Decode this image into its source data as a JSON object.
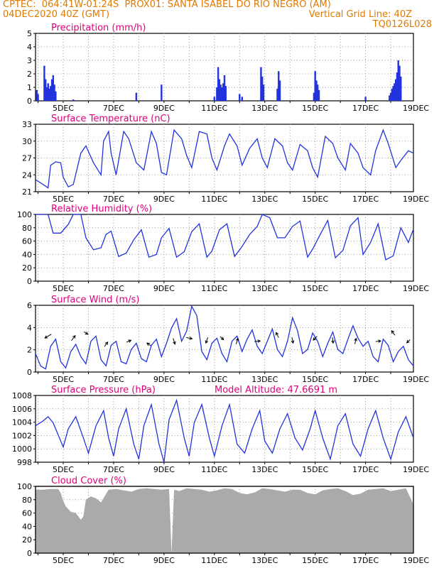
{
  "header": {
    "line1_left": "CPTEC:  064:41W-01:24S  PROX01: SANTA ISABEL DO RIO NEGRO (AM)",
    "line2_left": "04DEC2020 40Z (GMT)",
    "line2_right": "Vertical Grid Line: 40Z",
    "line3_right": "TQ0126L028"
  },
  "colors": {
    "title": "#e0007a",
    "header": "#e07a00",
    "line": "#2233dd",
    "cloud": "#aaaaaa",
    "grid": "#9a9a9a"
  },
  "x_ticks": [
    "5DEC",
    "7DEC",
    "9DEC",
    "11DEC",
    "13DEC",
    "15DEC",
    "17DEC",
    "19DEC"
  ],
  "chart_data": [
    {
      "type": "bar",
      "title": "Precipitation (mm/h)",
      "xlim": [
        0,
        15
      ],
      "ylim": [
        0,
        5
      ],
      "yticks": [
        "0",
        "1",
        "2",
        "3",
        "4",
        "5"
      ],
      "x_unit": "days since 04DEC",
      "bars": [
        [
          0.05,
          0.8
        ],
        [
          0.1,
          0.5
        ],
        [
          0.35,
          2.6
        ],
        [
          0.4,
          1.6
        ],
        [
          0.45,
          1.0
        ],
        [
          0.5,
          1.3
        ],
        [
          0.55,
          0.9
        ],
        [
          0.6,
          1.1
        ],
        [
          0.65,
          1.6
        ],
        [
          0.7,
          1.9
        ],
        [
          0.75,
          1.2
        ],
        [
          0.8,
          0.7
        ],
        [
          1.5,
          0.1
        ],
        [
          4.0,
          0.6
        ],
        [
          5.0,
          1.2
        ],
        [
          7.1,
          0.3
        ],
        [
          7.2,
          1.0
        ],
        [
          7.25,
          2.5
        ],
        [
          7.3,
          1.6
        ],
        [
          7.35,
          1.2
        ],
        [
          7.4,
          1.0
        ],
        [
          7.45,
          1.3
        ],
        [
          7.5,
          1.9
        ],
        [
          7.55,
          1.1
        ],
        [
          8.1,
          0.5
        ],
        [
          8.2,
          0.3
        ],
        [
          8.95,
          2.5
        ],
        [
          9.0,
          1.8
        ],
        [
          9.05,
          1.2
        ],
        [
          9.6,
          0.9
        ],
        [
          9.65,
          2.2
        ],
        [
          9.7,
          1.5
        ],
        [
          11.05,
          0.6
        ],
        [
          11.1,
          2.2
        ],
        [
          11.15,
          1.5
        ],
        [
          11.2,
          1.2
        ],
        [
          11.25,
          0.8
        ],
        [
          13.1,
          0.3
        ],
        [
          14.05,
          0.4
        ],
        [
          14.1,
          0.6
        ],
        [
          14.15,
          0.9
        ],
        [
          14.2,
          1.1
        ],
        [
          14.25,
          1.3
        ],
        [
          14.3,
          1.6
        ],
        [
          14.35,
          2.1
        ],
        [
          14.4,
          3.0
        ],
        [
          14.45,
          2.6
        ],
        [
          14.5,
          1.8
        ]
      ]
    },
    {
      "type": "line",
      "title": "Surface Temperature (nC)",
      "xlim": [
        0,
        15
      ],
      "ylim": [
        21,
        35
      ],
      "yticks": [
        "21",
        "24",
        "27",
        "30",
        "33"
      ],
      "series": [
        {
          "x": [
            0,
            0.3,
            0.5,
            0.6,
            0.8,
            1.0,
            1.1,
            1.3,
            1.5,
            1.8,
            2.0,
            2.3,
            2.6,
            2.7,
            2.9,
            3.0,
            3.2,
            3.5,
            3.7,
            4.0,
            4.3,
            4.6,
            4.8,
            5.0,
            5.2,
            5.5,
            5.8,
            6.0,
            6.2,
            6.5,
            6.8,
            7.0,
            7.2,
            7.5,
            7.7,
            8.0,
            8.2,
            8.5,
            8.8,
            9.0,
            9.2,
            9.5,
            9.8,
            10.0,
            10.2,
            10.5,
            10.8,
            11.0,
            11.2,
            11.5,
            11.8,
            12.0,
            12.3,
            12.5,
            12.8,
            13.0,
            13.3,
            13.5,
            13.8,
            14.0,
            14.3,
            14.5,
            14.8,
            15.0
          ],
          "y": [
            23.5,
            22.5,
            21.8,
            26.5,
            27.2,
            27.0,
            24.0,
            22.0,
            22.5,
            29.0,
            30.5,
            27.0,
            24.5,
            31.5,
            33.5,
            29.0,
            24.5,
            33.5,
            32.0,
            27.0,
            25.5,
            33.5,
            31.0,
            25.0,
            24.5,
            33.8,
            32.0,
            28.5,
            26.0,
            33.5,
            33.0,
            28.0,
            25.5,
            30.5,
            33.0,
            30.5,
            26.5,
            30.0,
            32.0,
            28.0,
            26.0,
            32.0,
            30.5,
            27.0,
            25.5,
            30.8,
            29.5,
            26.0,
            24.0,
            32.5,
            31.0,
            28.0,
            25.5,
            31.0,
            29.0,
            26.0,
            24.5,
            29.5,
            33.8,
            31.0,
            26.0,
            27.5,
            29.5,
            29.0
          ]
        }
      ]
    },
    {
      "type": "line",
      "title": "Relative Humidity (%)",
      "xlim": [
        0,
        15
      ],
      "ylim": [
        0,
        100
      ],
      "yticks": [
        "0",
        "20",
        "40",
        "60",
        "80",
        "100"
      ],
      "series": [
        {
          "x": [
            0,
            0.3,
            0.5,
            0.7,
            1.0,
            1.3,
            1.5,
            1.8,
            2.0,
            2.3,
            2.6,
            2.8,
            3.0,
            3.3,
            3.6,
            3.9,
            4.2,
            4.5,
            4.8,
            5.0,
            5.3,
            5.6,
            5.9,
            6.2,
            6.5,
            6.8,
            7.0,
            7.3,
            7.6,
            7.9,
            8.2,
            8.5,
            8.8,
            9.0,
            9.3,
            9.6,
            9.9,
            10.2,
            10.5,
            10.8,
            11.0,
            11.3,
            11.6,
            11.9,
            12.2,
            12.5,
            12.8,
            13.0,
            13.3,
            13.6,
            13.9,
            14.2,
            14.5,
            14.8,
            15.0
          ],
          "y": [
            100,
            100,
            100,
            72,
            72,
            85,
            100,
            100,
            65,
            47,
            50,
            70,
            75,
            37,
            42,
            62,
            77,
            36,
            40,
            65,
            79,
            36,
            44,
            74,
            86,
            36,
            45,
            77,
            86,
            37,
            52,
            70,
            82,
            100,
            95,
            65,
            65,
            82,
            90,
            36,
            48,
            70,
            91,
            35,
            46,
            83,
            95,
            40,
            58,
            86,
            32,
            38,
            80,
            58,
            78
          ]
        }
      ]
    },
    {
      "type": "line",
      "title": "Surface Wind (m/s)",
      "xlim": [
        0,
        15
      ],
      "ylim": [
        0,
        6.5
      ],
      "yticks": [
        "0",
        "2",
        "4",
        "6"
      ],
      "series": [
        {
          "x": [
            0,
            0.2,
            0.4,
            0.6,
            0.8,
            1.0,
            1.2,
            1.4,
            1.6,
            1.8,
            2.0,
            2.2,
            2.4,
            2.6,
            2.8,
            3.0,
            3.2,
            3.4,
            3.6,
            3.8,
            4.0,
            4.2,
            4.4,
            4.6,
            4.8,
            5.0,
            5.2,
            5.4,
            5.6,
            5.8,
            6.0,
            6.2,
            6.4,
            6.6,
            6.8,
            7.0,
            7.2,
            7.4,
            7.6,
            7.8,
            8.0,
            8.2,
            8.4,
            8.6,
            8.8,
            9.0,
            9.2,
            9.4,
            9.6,
            9.8,
            10.0,
            10.2,
            10.4,
            10.6,
            10.8,
            11.0,
            11.2,
            11.4,
            11.6,
            11.8,
            12.0,
            12.2,
            12.4,
            12.6,
            12.8,
            13.0,
            13.2,
            13.4,
            13.6,
            13.8,
            14.0,
            14.2,
            14.4,
            14.6,
            14.8,
            15.0
          ],
          "y": [
            1.8,
            0.6,
            0.3,
            2.5,
            3.2,
            1.0,
            0.4,
            2.0,
            2.7,
            1.5,
            0.8,
            3.0,
            3.5,
            1.2,
            0.6,
            2.6,
            3.0,
            1.0,
            0.8,
            2.2,
            2.8,
            1.3,
            1.0,
            2.6,
            3.2,
            1.5,
            2.8,
            4.3,
            5.2,
            3.0,
            4.0,
            6.4,
            5.5,
            2.0,
            1.2,
            2.8,
            3.3,
            1.8,
            1.0,
            3.0,
            3.5,
            2.0,
            3.2,
            4.1,
            2.5,
            1.8,
            3.0,
            4.2,
            2.2,
            1.5,
            3.0,
            5.3,
            4.0,
            1.8,
            2.2,
            3.8,
            3.0,
            1.5,
            2.8,
            3.9,
            2.2,
            1.8,
            3.2,
            4.5,
            3.3,
            2.5,
            3.0,
            1.5,
            1.0,
            3.2,
            2.6,
            1.0,
            2.0,
            2.5,
            1.2,
            0.6
          ]
        }
      ],
      "arrows": [
        [
          0.5,
          3.5,
          -1,
          -0.6
        ],
        [
          1.5,
          3.3,
          0.6,
          0.8
        ],
        [
          2.0,
          3.8,
          0.6,
          -0.4
        ],
        [
          2.8,
          2.7,
          0.5,
          0.7
        ],
        [
          3.7,
          3.0,
          0.7,
          0.3
        ],
        [
          4.5,
          2.7,
          -0.6,
          0.4
        ],
        [
          5.5,
          3.0,
          0.3,
          -0.9
        ],
        [
          6.1,
          3.3,
          0.9,
          -0.2
        ],
        [
          6.8,
          3.1,
          -0.3,
          -0.9
        ],
        [
          7.4,
          3.3,
          0.5,
          -0.5
        ],
        [
          8.0,
          3.0,
          0.3,
          0.9
        ],
        [
          8.8,
          3.0,
          0.9,
          0.1
        ],
        [
          9.6,
          3.6,
          -0.4,
          0.8
        ],
        [
          10.2,
          3.1,
          0.2,
          -0.9
        ],
        [
          11.1,
          3.3,
          -0.6,
          -0.6
        ],
        [
          11.8,
          3.1,
          0.1,
          -0.9
        ],
        [
          12.7,
          3.0,
          0.2,
          0.9
        ],
        [
          13.6,
          3.0,
          0.8,
          0.1
        ],
        [
          14.2,
          3.8,
          -0.5,
          0.7
        ],
        [
          14.8,
          3.0,
          -0.5,
          -0.5
        ]
      ]
    },
    {
      "type": "line",
      "title": "Surface Pressure (hPa)",
      "annotation": "Model Altitude: 47.6691 m",
      "xlim": [
        0,
        15
      ],
      "ylim": [
        998,
        1009
      ],
      "yticks": [
        "998",
        "1000",
        "1002",
        "1004",
        "1006",
        "1008"
      ],
      "series": [
        {
          "x": [
            0,
            0.3,
            0.5,
            0.7,
            0.9,
            1.1,
            1.3,
            1.6,
            1.9,
            2.1,
            2.4,
            2.7,
            2.9,
            3.1,
            3.3,
            3.6,
            3.9,
            4.1,
            4.3,
            4.6,
            4.9,
            5.1,
            5.3,
            5.6,
            5.9,
            6.1,
            6.3,
            6.6,
            6.9,
            7.1,
            7.4,
            7.7,
            8.0,
            8.3,
            8.6,
            8.9,
            9.1,
            9.4,
            9.7,
            10.0,
            10.3,
            10.6,
            10.9,
            11.1,
            11.4,
            11.7,
            12.0,
            12.3,
            12.6,
            12.9,
            13.2,
            13.5,
            13.8,
            14.1,
            14.4,
            14.7,
            15.0
          ],
          "y": [
            1004,
            1004.8,
            1005.5,
            1004.5,
            1002.5,
            1000.5,
            1003.5,
            1005.5,
            1002,
            999.5,
            1004,
            1006.5,
            1002,
            999,
            1003.5,
            1006.8,
            1001,
            998.5,
            1004,
            1007.5,
            1001,
            998,
            1005,
            1008.2,
            1002,
            999,
            1004.5,
            1007.5,
            1002,
            999,
            1004,
            1007.5,
            1001,
            999.5,
            1003.5,
            1006.5,
            1001.5,
            999.5,
            1003.5,
            1006,
            1002,
            1000,
            1003.5,
            1006.5,
            1002,
            998.5,
            1004,
            1006,
            1001,
            999,
            1003.5,
            1006.5,
            1002,
            998.5,
            1003,
            1005.5,
            1002
          ]
        }
      ]
    },
    {
      "type": "area",
      "title": "Cloud Cover (%)",
      "xlim": [
        0,
        15
      ],
      "ylim": [
        0,
        100
      ],
      "yticks": [
        "0",
        "20",
        "40",
        "60",
        "80",
        "100"
      ],
      "series": [
        {
          "x": [
            0,
            0.3,
            0.6,
            0.9,
            1.0,
            1.1,
            1.2,
            1.4,
            1.6,
            1.8,
            1.9,
            2.0,
            2.2,
            2.4,
            2.6,
            2.9,
            3.2,
            3.5,
            3.8,
            4.1,
            4.4,
            4.7,
            5.0,
            5.3,
            5.4,
            5.5,
            5.7,
            6.0,
            6.3,
            6.6,
            6.9,
            7.2,
            7.5,
            7.8,
            8.1,
            8.4,
            8.7,
            9.0,
            9.3,
            9.6,
            9.9,
            10.2,
            10.5,
            10.8,
            11.1,
            11.4,
            11.7,
            12.0,
            12.3,
            12.6,
            12.9,
            13.2,
            13.5,
            13.8,
            14.1,
            14.4,
            14.7,
            15.0
          ],
          "y": [
            95,
            95,
            96,
            96,
            90,
            78,
            70,
            62,
            60,
            50,
            55,
            80,
            85,
            82,
            76,
            95,
            96,
            94,
            92,
            96,
            97,
            96,
            95,
            96,
            0,
            95,
            93,
            97,
            96,
            95,
            92,
            94,
            97,
            96,
            90,
            88,
            91,
            97,
            96,
            94,
            92,
            95,
            95,
            90,
            88,
            94,
            96,
            97,
            93,
            87,
            89,
            95,
            96,
            97,
            93,
            95,
            97,
            73
          ]
        }
      ]
    }
  ]
}
